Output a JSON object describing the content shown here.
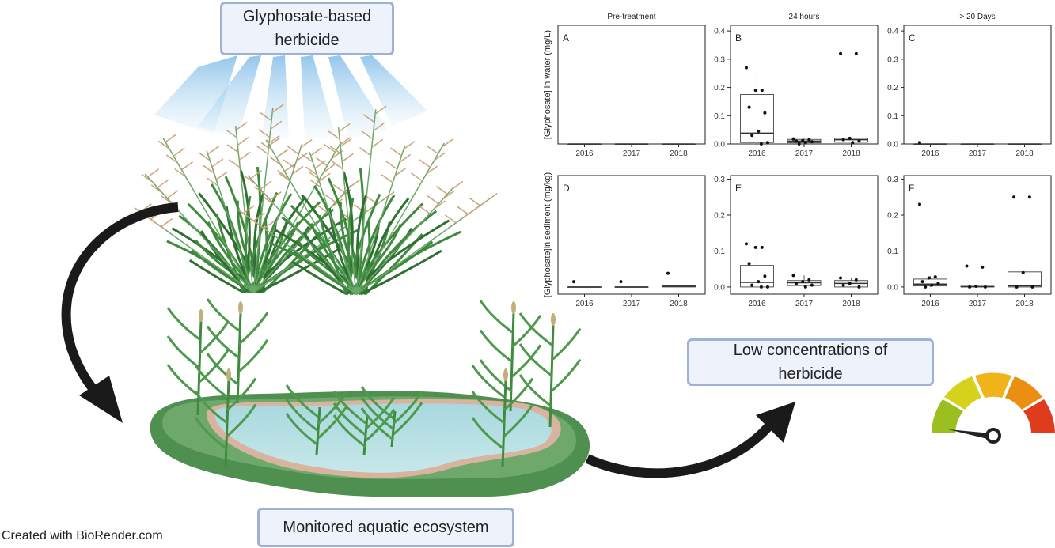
{
  "boxes": {
    "herbicide": "Glyphosate-based\nherbicide",
    "low_concentrations": "Low concentrations of\nherbicide",
    "ecosystem": "Monitored aquatic ecosystem"
  },
  "footer": {
    "credit": "Created with BioRender.com"
  },
  "colors": {
    "box_fill": "#eef3fb",
    "box_border": "#9eb1d6",
    "grass": "#3f8a3e",
    "water": "#b5dde2",
    "gauge": [
      "#9bbf1f",
      "#d6d11c",
      "#f0b31a",
      "#eb8f12",
      "#df3b1f"
    ]
  },
  "icons": [
    "grass-icon",
    "spray-icon",
    "pond-icon",
    "curved-arrow-icon",
    "gauge-icon"
  ],
  "chart_data": [
    {
      "type": "box",
      "panel": "A",
      "title": "Pre-treatment",
      "ylabel": "[Glyphosate] in water (mg/L)",
      "categories": [
        "2016",
        "2017",
        "2018"
      ],
      "ylim": [
        0,
        0.42
      ],
      "yticks": [],
      "boxes": [
        {
          "q1": 0,
          "median": 0,
          "q3": 0,
          "lo": 0,
          "hi": 0
        },
        {
          "q1": 0,
          "median": 0,
          "q3": 0,
          "lo": 0,
          "hi": 0
        },
        {
          "q1": 0,
          "median": 0,
          "q3": 0,
          "lo": 0,
          "hi": 0
        }
      ],
      "points": [
        [],
        [],
        []
      ]
    },
    {
      "type": "box",
      "panel": "B",
      "title": "24 hours",
      "ylabel": "",
      "categories": [
        "2016",
        "2017",
        "2018"
      ],
      "ylim": [
        0,
        0.42
      ],
      "yticks": [
        "0.0",
        "0.1",
        "0.2",
        "0.3",
        "0.4"
      ],
      "boxes": [
        {
          "q1": 0.005,
          "median": 0.038,
          "q3": 0.175,
          "lo": 0,
          "hi": 0.27
        },
        {
          "q1": 0.004,
          "median": 0.01,
          "q3": 0.016,
          "lo": 0,
          "hi": 0.02
        },
        {
          "q1": 0.006,
          "median": 0.015,
          "q3": 0.02,
          "lo": 0,
          "hi": 0.022
        }
      ],
      "points": [
        [
          0.27,
          0.19,
          0.19,
          0.13,
          0.11,
          0.045,
          0.03,
          0.005,
          0
        ],
        [
          0.018,
          0.015,
          0.012,
          0.01,
          0.008,
          0.005,
          0
        ],
        [
          0.32,
          0.32,
          0.02,
          0.015,
          0.01,
          0.005
        ]
      ]
    },
    {
      "type": "box",
      "panel": "C",
      "title": "> 20 Days",
      "ylabel": "",
      "categories": [
        "2016",
        "2017",
        "2018"
      ],
      "ylim": [
        0,
        0.42
      ],
      "yticks": [
        "0.0",
        "0.1",
        "0.2",
        "0.3",
        "0.4"
      ],
      "boxes": [
        {
          "q1": 0,
          "median": 0,
          "q3": 0,
          "lo": 0,
          "hi": 0
        },
        {
          "q1": 0,
          "median": 0,
          "q3": 0,
          "lo": 0,
          "hi": 0
        },
        {
          "q1": 0,
          "median": 0,
          "q3": 0,
          "lo": 0,
          "hi": 0
        }
      ],
      "points": [
        [
          0.005
        ],
        [],
        []
      ]
    },
    {
      "type": "box",
      "panel": "D",
      "title": "",
      "ylabel": "[Glyphosate]in sediment (mg/kg)",
      "categories": [
        "2016",
        "2017",
        "2018"
      ],
      "ylim": [
        -0.02,
        0.31
      ],
      "yticks": [],
      "boxes": [
        {
          "q1": 0,
          "median": 0,
          "q3": 0,
          "lo": 0,
          "hi": 0
        },
        {
          "q1": 0,
          "median": 0,
          "q3": 0,
          "lo": 0,
          "hi": 0
        },
        {
          "q1": 0,
          "median": 0.002,
          "q3": 0.004,
          "lo": 0,
          "hi": 0.004
        }
      ],
      "points": [
        [
          0.015
        ],
        [
          0.015
        ],
        [
          0.038
        ]
      ]
    },
    {
      "type": "box",
      "panel": "E",
      "title": "",
      "ylabel": "",
      "categories": [
        "2016",
        "2017",
        "2018"
      ],
      "ylim": [
        -0.02,
        0.31
      ],
      "yticks": [
        "0.0",
        "0.1",
        "0.2",
        "0.3"
      ],
      "boxes": [
        {
          "q1": 0,
          "median": 0.013,
          "q3": 0.06,
          "lo": 0,
          "hi": 0.12
        },
        {
          "q1": 0.004,
          "median": 0.012,
          "q3": 0.018,
          "lo": 0,
          "hi": 0.032
        },
        {
          "q1": 0,
          "median": 0.01,
          "q3": 0.018,
          "lo": 0,
          "hi": 0.025
        }
      ],
      "points": [
        [
          0.12,
          0.11,
          0.11,
          0.065,
          0.03,
          0.015,
          0.005,
          0,
          0
        ],
        [
          0.032,
          0.02,
          0.015,
          0.01,
          0.005,
          0
        ],
        [
          0.025,
          0.02,
          0.01,
          0.005,
          0
        ]
      ]
    },
    {
      "type": "box",
      "panel": "F",
      "title": "",
      "ylabel": "",
      "categories": [
        "2016",
        "2017",
        "2018"
      ],
      "ylim": [
        -0.02,
        0.31
      ],
      "yticks": [
        "0.0",
        "0.1",
        "0.2",
        "0.3"
      ],
      "boxes": [
        {
          "q1": 0.003,
          "median": 0.008,
          "q3": 0.022,
          "lo": 0,
          "hi": 0.03
        },
        {
          "q1": 0,
          "median": 0.001,
          "q3": 0.002,
          "lo": 0,
          "hi": 0.002
        },
        {
          "q1": 0,
          "median": 0.003,
          "q3": 0.042,
          "lo": 0,
          "hi": 0.042
        }
      ],
      "points": [
        [
          0.23,
          0.028,
          0.025,
          0.015,
          0.01,
          0.005,
          0
        ],
        [
          0.058,
          0.055,
          0.002,
          0,
          0
        ],
        [
          0.25,
          0.25,
          0.04,
          0,
          0
        ]
      ]
    }
  ]
}
